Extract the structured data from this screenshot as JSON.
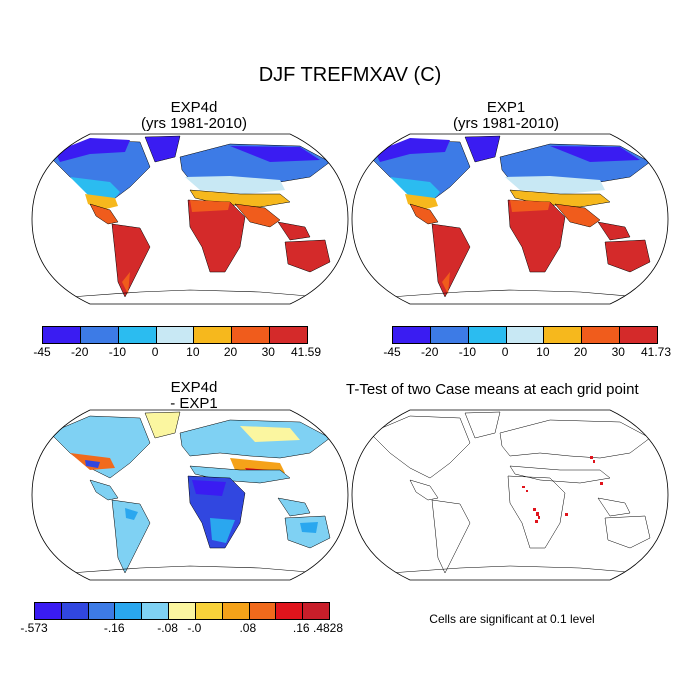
{
  "figure": {
    "title": "DJF TREFMXAV (C)"
  },
  "panels": {
    "top_left": {
      "title_line1": "EXP4d",
      "title_line2": "(yrs 1981-2010)"
    },
    "top_right": {
      "title_line1": "EXP1",
      "title_line2": "(yrs 1981-2010)"
    },
    "bottom_left": {
      "title_line1": "EXP4d",
      "title_line2": "- EXP1"
    },
    "bottom_right": {
      "title": "T-Test of two Case means at each grid point",
      "note": "Cells are significant at 0.1 level"
    }
  },
  "colorbars": {
    "temperature": {
      "colors": [
        "#3a1cf2",
        "#3d7be6",
        "#2bbcf0",
        "#c8e8f4",
        "#f6b81d",
        "#f05c1c",
        "#d42a2a"
      ],
      "left_labels": [
        "-45",
        "-20",
        "-10",
        "0",
        "10",
        "20",
        "30",
        "41.59"
      ],
      "right_labels": [
        "-45",
        "-20",
        "-10",
        "0",
        "10",
        "20",
        "30",
        "41.73"
      ]
    },
    "difference": {
      "colors": [
        "#3a1cf2",
        "#3147e0",
        "#3d7be6",
        "#2aa7ef",
        "#7fd1f3",
        "#fbf6a0",
        "#f8d23a",
        "#f5a219",
        "#f06a1c",
        "#e0141c",
        "#c81e2a"
      ],
      "labels": [
        "-.573",
        "-.16",
        "-.08",
        "-.0",
        ".08",
        ".16",
        ".4828"
      ]
    }
  }
}
